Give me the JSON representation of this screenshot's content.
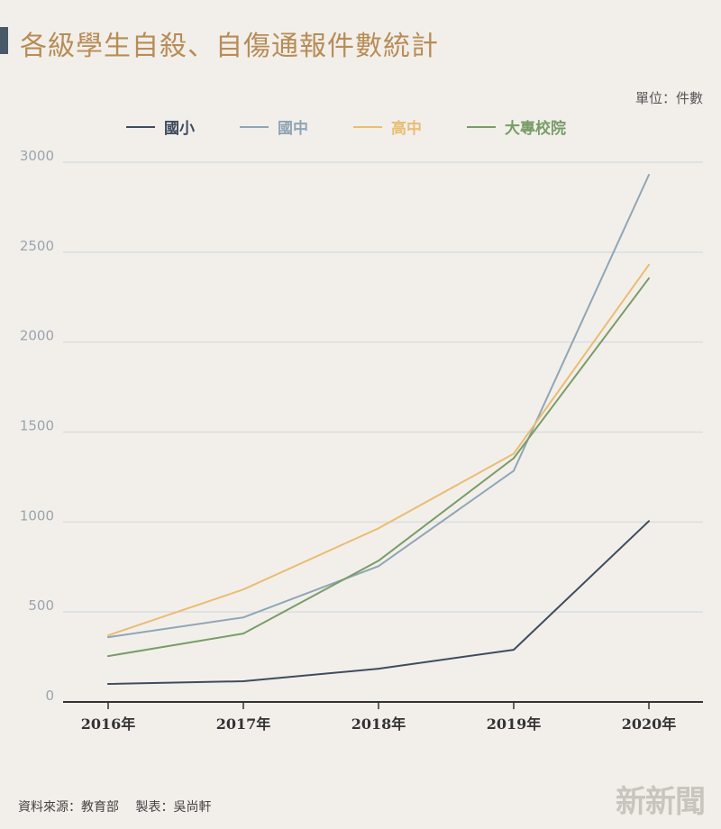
{
  "title": "各級學生自殺、自傷通報件數統計",
  "unit_label": "單位：件數",
  "colors": {
    "background": "#f2efea",
    "title": "#b88c57",
    "grid": "#d9dde0",
    "axis": "#333333",
    "tick_y": "#9aa4ad"
  },
  "chart_data": {
    "type": "line",
    "title": "各級學生自殺、自傷通報件數統計",
    "xlabel": "",
    "ylabel": "",
    "categories": [
      "2016年",
      "2017年",
      "2018年",
      "2019年",
      "2020年"
    ],
    "ylim": [
      0,
      3000
    ],
    "yticks": [
      0,
      500,
      1000,
      1500,
      2000,
      2500,
      3000
    ],
    "grid": true,
    "legend_position": "top-left",
    "series": [
      {
        "name": "國小",
        "color": "#3e4c5e",
        "values": [
          100,
          115,
          185,
          290,
          1005
        ]
      },
      {
        "name": "國中",
        "color": "#8fa6b6",
        "values": [
          360,
          470,
          755,
          1285,
          2930
        ]
      },
      {
        "name": "高中",
        "color": "#e9bd74",
        "values": [
          370,
          625,
          965,
          1380,
          2430
        ]
      },
      {
        "name": "大專校院",
        "color": "#789d68",
        "values": [
          255,
          380,
          785,
          1355,
          2355
        ]
      }
    ]
  },
  "footer": {
    "source": "資料來源：教育部",
    "maker": "製表：吳尚軒"
  },
  "logo_text": "新新聞"
}
